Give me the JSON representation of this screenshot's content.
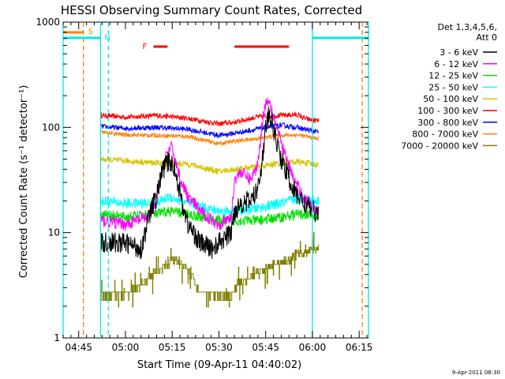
{
  "chart_data": {
    "type": "line",
    "title": "HESSI Observing Summary Count Rates, Corrected",
    "xlabel": "Start Time (09-Apr-11 04:40:02)",
    "ylabel": "Corrected Count Rate (s⁻¹ detector⁻¹)",
    "yscale": "log",
    "ylim": [
      1,
      1000
    ],
    "xlim_minutes_after_0440": [
      0,
      98
    ],
    "x_ticks": [
      {
        "m": 5,
        "label": "04:45"
      },
      {
        "m": 20,
        "label": "05:00"
      },
      {
        "m": 35,
        "label": "05:15"
      },
      {
        "m": 50,
        "label": "05:30"
      },
      {
        "m": 65,
        "label": "05:45"
      },
      {
        "m": 80,
        "label": "06:00"
      },
      {
        "m": 95,
        "label": "06:15"
      }
    ],
    "y_ticks": [
      {
        "v": 1,
        "label": "1"
      },
      {
        "v": 10,
        "label": "10"
      },
      {
        "v": 100,
        "label": "100"
      },
      {
        "v": 1000,
        "label": "1000"
      }
    ],
    "legend": {
      "placement": "right",
      "header": [
        "Det 1,3,4,5,6,",
        "Att 0"
      ],
      "entries": [
        {
          "label": "3 - 6 keV",
          "color": "#000000"
        },
        {
          "label": "6 - 12 keV",
          "color": "#ff00ff"
        },
        {
          "label": "12 - 25 keV",
          "color": "#00e000"
        },
        {
          "label": "25 - 50 keV",
          "color": "#00ffff"
        },
        {
          "label": "50 - 100 keV",
          "color": "#d4c400"
        },
        {
          "label": "100 - 300 keV",
          "color": "#ff0000"
        },
        {
          "label": "300 - 800 keV",
          "color": "#0000ff"
        },
        {
          "label": "800 - 7000 keV",
          "color": "#ff8000"
        },
        {
          "label": "7000 - 20000 keV",
          "color": "#808000"
        }
      ]
    },
    "series": [
      {
        "color": "#ff0000",
        "noise": 0.025,
        "step": 0,
        "x": [
          12,
          20,
          30,
          40,
          50,
          55,
          62,
          70,
          75,
          78,
          82
        ],
        "y": [
          130,
          125,
          130,
          122,
          108,
          112,
          125,
          130,
          132,
          120,
          115
        ]
      },
      {
        "color": "#0000ff",
        "noise": 0.025,
        "step": 0,
        "x": [
          12,
          20,
          30,
          40,
          50,
          55,
          62,
          70,
          75,
          78,
          82
        ],
        "y": [
          102,
          98,
          100,
          96,
          84,
          88,
          96,
          105,
          100,
          95,
          90
        ]
      },
      {
        "color": "#ff8000",
        "noise": 0.02,
        "step": 0,
        "x": [
          12,
          20,
          30,
          40,
          50,
          55,
          62,
          70,
          75,
          78,
          82
        ],
        "y": [
          90,
          85,
          84,
          82,
          70,
          74,
          78,
          84,
          85,
          82,
          78
        ]
      },
      {
        "color": "#d4c400",
        "noise": 0.03,
        "step": 0,
        "x": [
          12,
          20,
          30,
          40,
          50,
          55,
          62,
          70,
          75,
          78,
          82
        ],
        "y": [
          50,
          48,
          46,
          45,
          38,
          40,
          42,
          46,
          47,
          46,
          44
        ]
      },
      {
        "color": "#00ffff",
        "noise": 0.05,
        "step": 0,
        "x": [
          12,
          20,
          30,
          34,
          40,
          50,
          55,
          62,
          70,
          75,
          78,
          82
        ],
        "y": [
          20,
          19,
          19,
          22,
          19,
          16,
          16,
          17,
          19,
          21,
          21,
          20
        ]
      },
      {
        "color": "#00e000",
        "noise": 0.05,
        "step": 0,
        "x": [
          12,
          20,
          30,
          34,
          40,
          50,
          55,
          62,
          70,
          75,
          78,
          82
        ],
        "y": [
          15,
          14,
          15,
          16,
          15,
          13,
          13,
          13,
          14,
          15,
          15,
          14
        ]
      },
      {
        "color": "#ff00ff",
        "noise": 0.06,
        "step": 0,
        "x": [
          12,
          20,
          27,
          29,
          31,
          33,
          35,
          36,
          38,
          40,
          45,
          50,
          54,
          55,
          57,
          60,
          62,
          63,
          64,
          65,
          66,
          67,
          70,
          74,
          78,
          82
        ],
        "y": [
          13,
          12,
          14,
          16,
          30,
          55,
          65,
          48,
          30,
          22,
          15,
          12,
          14,
          32,
          38,
          32,
          40,
          60,
          120,
          170,
          185,
          150,
          70,
          32,
          20,
          16
        ]
      },
      {
        "color": "#000000",
        "noise": 0.1,
        "step": 0,
        "x": [
          12,
          20,
          25,
          27,
          28,
          30,
          31,
          32,
          34,
          36,
          38,
          40,
          44,
          48,
          50,
          54,
          55,
          57,
          60,
          62,
          64,
          65,
          66,
          67,
          70,
          74,
          78,
          82
        ],
        "y": [
          8,
          8,
          7,
          12,
          16,
          22,
          30,
          40,
          48,
          40,
          20,
          12,
          8,
          7,
          8,
          10,
          16,
          19,
          20,
          24,
          50,
          100,
          130,
          110,
          50,
          25,
          18,
          15
        ]
      },
      {
        "color": "#808000",
        "noise": 0.04,
        "step": 1,
        "x": [
          12,
          16,
          20,
          24,
          26,
          28,
          31,
          33,
          36,
          38,
          40,
          42,
          44,
          45,
          48,
          50,
          52,
          54,
          55,
          57,
          60,
          62,
          64,
          66,
          68,
          70,
          72,
          74,
          76,
          78,
          80,
          82
        ],
        "y": [
          2.4,
          2.6,
          2.6,
          3.0,
          3.4,
          3.8,
          4.5,
          5.0,
          5.5,
          4.8,
          4.5,
          3.5,
          2.7,
          2.6,
          2.7,
          2.5,
          2.4,
          2.6,
          3.0,
          3.3,
          3.8,
          4.0,
          4.2,
          4.8,
          5.0,
          5.2,
          5.5,
          6.0,
          6.5,
          6.3,
          7.0,
          7.2
        ]
      }
    ],
    "annotations": {
      "S": {
        "label": "S",
        "color": "#ff8000",
        "bar_x": [
          0,
          6.5
        ],
        "dashed_lines_x": [
          6.5,
          96
        ]
      },
      "N": {
        "label": "N",
        "color": "#00e8e8",
        "bar_x": [
          [
            0,
            12
          ],
          [
            80,
            98
          ]
        ],
        "solid_lines_x": [
          0,
          12,
          80,
          98
        ],
        "dashed_lines_x": [
          14.5
        ]
      },
      "F": {
        "label": "F",
        "color": "#ff0000",
        "bar_x": [
          [
            29,
            33.5
          ],
          [
            55,
            72.5
          ]
        ]
      }
    },
    "timestamp": "9-Apr-2011 08:30"
  }
}
